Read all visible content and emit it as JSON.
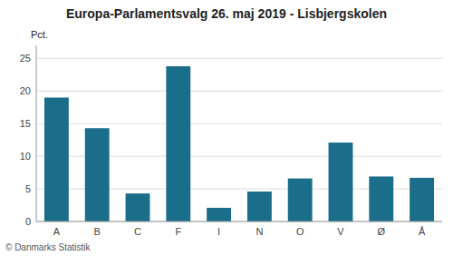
{
  "chart_data": {
    "type": "bar",
    "title": "Europa-Parlamentsvalg 26. maj 2019 - Lisbjergskolen",
    "categories": [
      "A",
      "B",
      "C",
      "F",
      "I",
      "N",
      "O",
      "V",
      "Ø",
      "Å"
    ],
    "values": [
      19.0,
      14.3,
      4.3,
      23.8,
      2.1,
      4.6,
      6.6,
      12.1,
      6.9,
      6.7
    ],
    "color": "#1a6e8a",
    "ylabel": "Pct.",
    "ylim": [
      0,
      27
    ],
    "yticks": [
      0,
      5,
      10,
      15,
      20,
      25
    ],
    "grid": true,
    "annotations": [
      "© Danmarks Statistik"
    ]
  }
}
